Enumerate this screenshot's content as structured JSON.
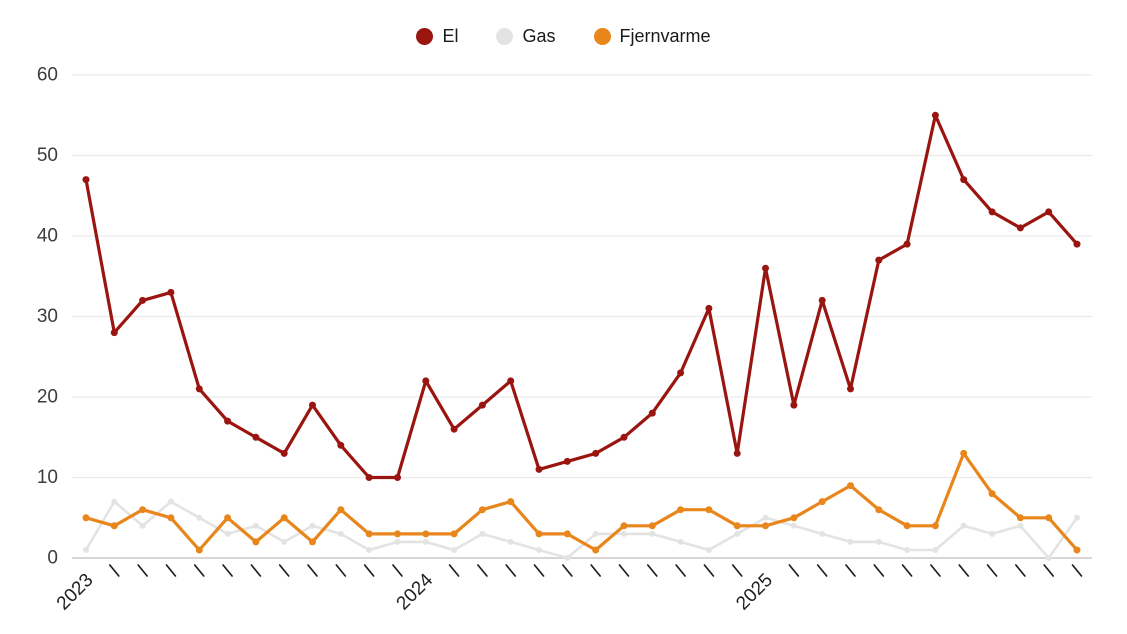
{
  "legend": {
    "items": [
      {
        "label": "El",
        "color": "#9A1510"
      },
      {
        "label": "Gas",
        "color": "#E3E3E4"
      },
      {
        "label": "Fjernvarme",
        "color": "#E8861C"
      }
    ]
  },
  "y_axis": {
    "ticks": [
      0,
      10,
      20,
      30,
      40,
      50,
      60
    ]
  },
  "x_axis": {
    "year_labels": [
      "2023",
      "2024",
      "2025"
    ],
    "months_per_year": 12
  },
  "colors": {
    "grid": "#EAEAEA",
    "axis_line": "#C8C8C8",
    "tick_text": "#3C3C3C",
    "year_text": "#1F1F1F",
    "month_dash": "#1F1F1F",
    "background": "#FFFFFF"
  },
  "chart_data": {
    "type": "line",
    "title": "",
    "xlabel": "",
    "ylabel": "",
    "ylim": [
      0,
      60
    ],
    "yticks": [
      0,
      10,
      20,
      30,
      40,
      50,
      60
    ],
    "grid": "horizontal-only",
    "legend_position": "top-center",
    "x_tick_style": "rotated-45, year label at each January, short dash at other months",
    "x": [
      "2023-01",
      "2023-02",
      "2023-03",
      "2023-04",
      "2023-05",
      "2023-06",
      "2023-07",
      "2023-08",
      "2023-09",
      "2023-10",
      "2023-11",
      "2023-12",
      "2024-01",
      "2024-02",
      "2024-03",
      "2024-04",
      "2024-05",
      "2024-06",
      "2024-07",
      "2024-08",
      "2024-09",
      "2024-10",
      "2024-11",
      "2024-12",
      "2025-01",
      "2025-02",
      "2025-03",
      "2025-04",
      "2025-05",
      "2025-06",
      "2025-07",
      "2025-08",
      "2025-09",
      "2025-10",
      "2025-11",
      "2025-12"
    ],
    "draw_order": [
      "Gas",
      "Fjernvarme",
      "El"
    ],
    "series": [
      {
        "name": "El",
        "color": "#9A1510",
        "values": [
          47,
          28,
          32,
          33,
          21,
          17,
          15,
          13,
          19,
          14,
          10,
          10,
          22,
          16,
          19,
          22,
          11,
          12,
          13,
          15,
          18,
          23,
          31,
          13,
          36,
          19,
          32,
          21,
          37,
          39,
          55,
          47,
          43,
          41,
          43,
          39
        ]
      },
      {
        "name": "Gas",
        "color": "#E3E3E4",
        "values": [
          1,
          7,
          4,
          7,
          5,
          3,
          4,
          2,
          4,
          3,
          1,
          2,
          2,
          1,
          3,
          2,
          1,
          0,
          3,
          3,
          3,
          2,
          1,
          3,
          5,
          4,
          3,
          2,
          2,
          1,
          1,
          4,
          3,
          4,
          0,
          5
        ]
      },
      {
        "name": "Fjernvarme",
        "color": "#E8861C",
        "values": [
          5,
          4,
          6,
          5,
          1,
          5,
          2,
          5,
          2,
          6,
          3,
          3,
          3,
          3,
          6,
          7,
          3,
          3,
          1,
          4,
          4,
          6,
          6,
          4,
          4,
          5,
          7,
          9,
          6,
          4,
          4,
          13,
          8,
          5,
          5,
          1
        ]
      }
    ]
  }
}
